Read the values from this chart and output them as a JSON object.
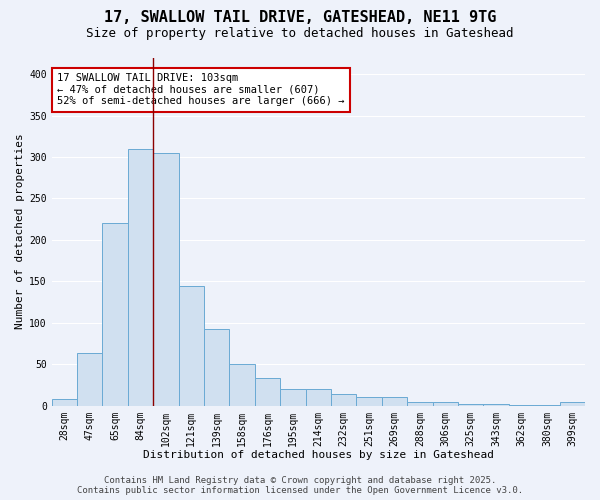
{
  "title_line1": "17, SWALLOW TAIL DRIVE, GATESHEAD, NE11 9TG",
  "title_line2": "Size of property relative to detached houses in Gateshead",
  "xlabel": "Distribution of detached houses by size in Gateshead",
  "ylabel": "Number of detached properties",
  "bar_color": "#d0e0f0",
  "bar_edge_color": "#6aaad4",
  "background_color": "#eef2fa",
  "grid_color": "#ffffff",
  "categories": [
    "28sqm",
    "47sqm",
    "65sqm",
    "84sqm",
    "102sqm",
    "121sqm",
    "139sqm",
    "158sqm",
    "176sqm",
    "195sqm",
    "214sqm",
    "232sqm",
    "251sqm",
    "269sqm",
    "288sqm",
    "306sqm",
    "325sqm",
    "343sqm",
    "362sqm",
    "380sqm",
    "399sqm"
  ],
  "values": [
    8,
    64,
    220,
    310,
    305,
    145,
    93,
    50,
    33,
    20,
    20,
    14,
    11,
    10,
    4,
    4,
    2,
    2,
    1,
    1,
    4
  ],
  "vline_x": 3.5,
  "vline_color": "#8b0000",
  "annotation_text": "17 SWALLOW TAIL DRIVE: 103sqm\n← 47% of detached houses are smaller (607)\n52% of semi-detached houses are larger (666) →",
  "annotation_box_color": "white",
  "annotation_box_edge_color": "#cc0000",
  "ylim": [
    0,
    420
  ],
  "yticks": [
    0,
    50,
    100,
    150,
    200,
    250,
    300,
    350,
    400
  ],
  "footer_line1": "Contains HM Land Registry data © Crown copyright and database right 2025.",
  "footer_line2": "Contains public sector information licensed under the Open Government Licence v3.0.",
  "title_fontsize": 11,
  "subtitle_fontsize": 9,
  "axis_label_fontsize": 8,
  "tick_fontsize": 7,
  "annotation_fontsize": 7.5,
  "footer_fontsize": 6.5
}
